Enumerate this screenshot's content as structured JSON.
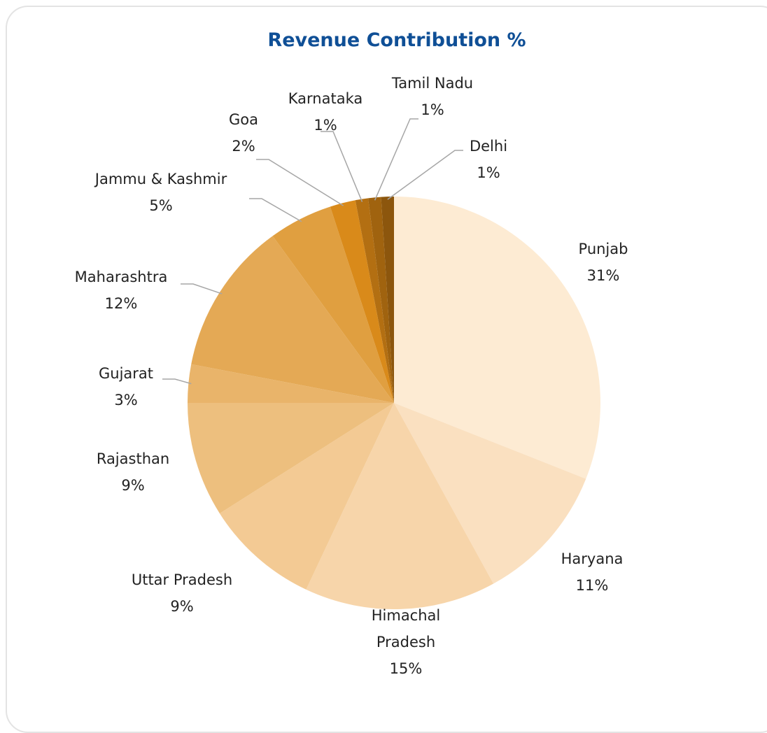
{
  "chart_data": {
    "type": "pie",
    "title": "Revenue Contribution %",
    "categories": [
      "Punjab",
      "Haryana",
      "Himachal Pradesh",
      "Uttar Pradesh",
      "Rajasthan",
      "Gujarat",
      "Maharashtra",
      "Jammu & Kashmir",
      "Goa",
      "Karnataka",
      "Tamil Nadu",
      "Delhi"
    ],
    "values": [
      31,
      11,
      15,
      9,
      9,
      3,
      12,
      5,
      2,
      1,
      1,
      1
    ],
    "value_labels": [
      "31%",
      "11%",
      "15%",
      "9%",
      "9%",
      "3%",
      "12%",
      "5%",
      "2%",
      "1%",
      "1%",
      "1%"
    ],
    "colors": [
      "#fdebd3",
      "#fae0c0",
      "#f7d5aa",
      "#f3ca94",
      "#edbf7e",
      "#e9b46a",
      "#e4a955",
      "#e09f40",
      "#d98a1a",
      "#b36f12",
      "#a0630f",
      "#8c560d"
    ]
  }
}
